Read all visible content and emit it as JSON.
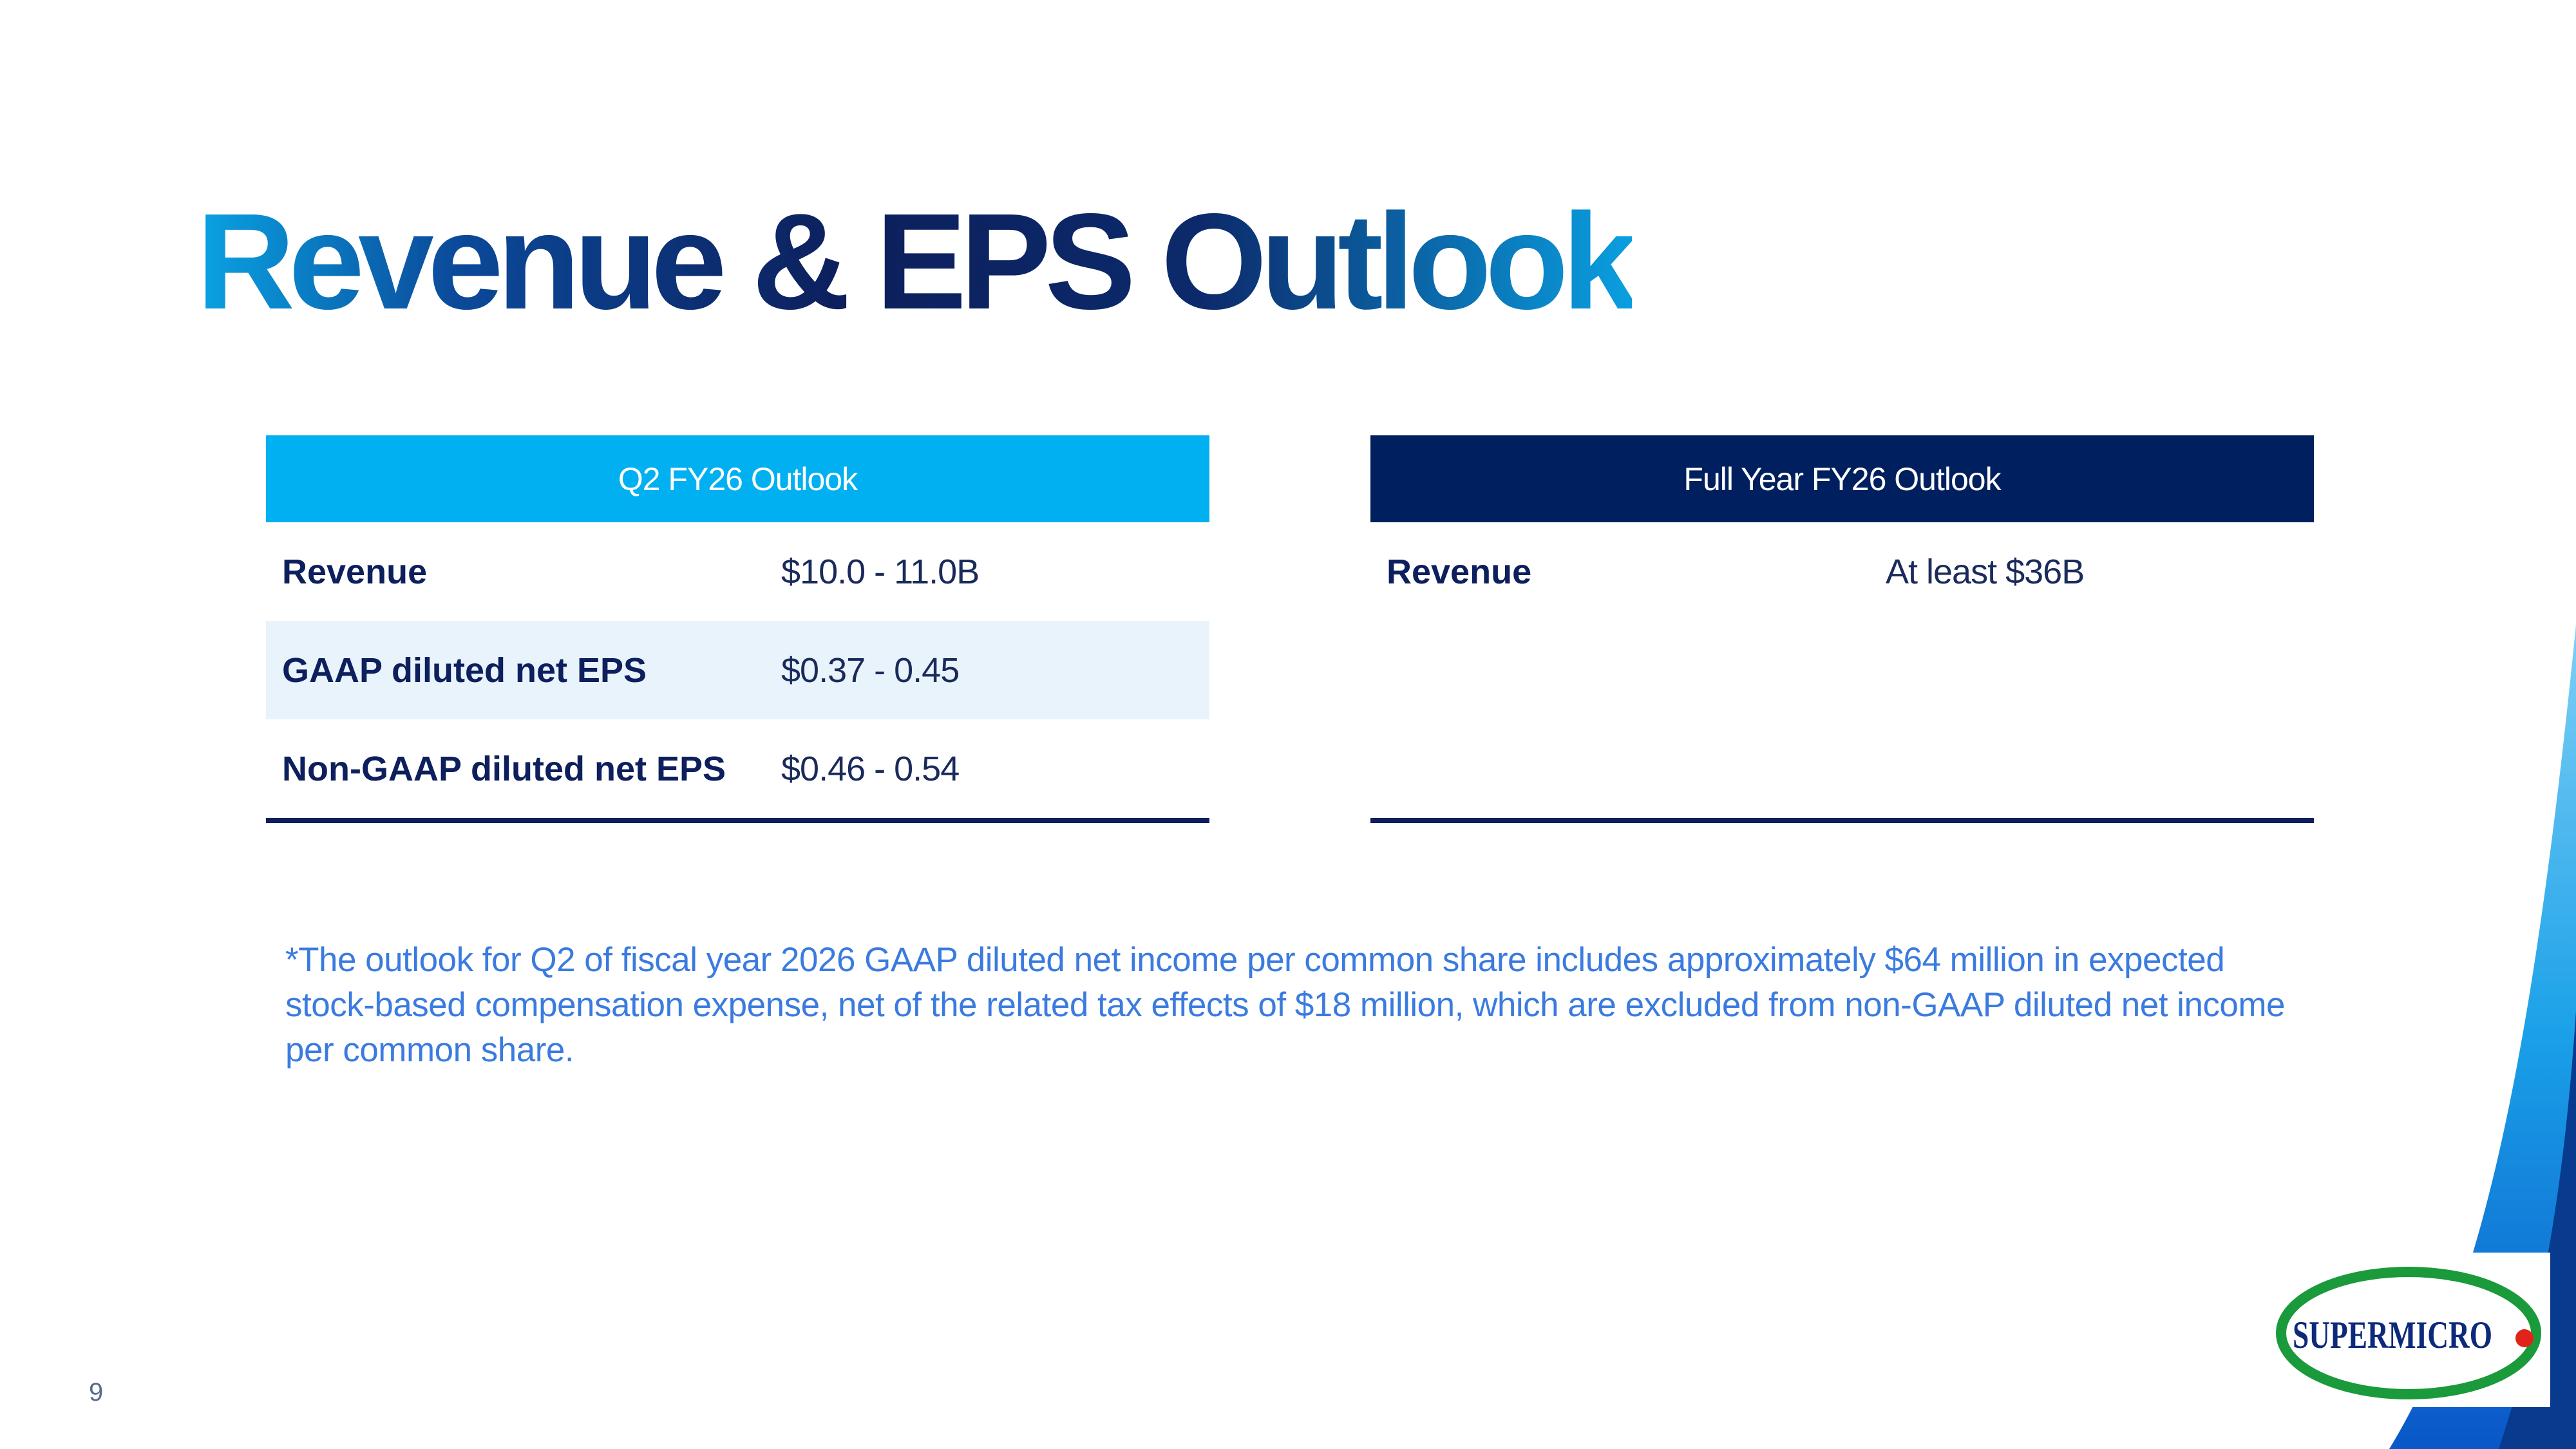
{
  "slide": {
    "title": "Revenue & EPS Outlook",
    "page_number": "9"
  },
  "q2_table": {
    "header": "Q2 FY26 Outlook",
    "rows": [
      {
        "label": "Revenue",
        "value": "$10.0 - 11.0B"
      },
      {
        "label": "GAAP diluted net EPS",
        "value": "$0.37 - 0.45"
      },
      {
        "label": "Non-GAAP diluted net EPS",
        "value": "$0.46 - 0.54"
      }
    ]
  },
  "fy_table": {
    "header": "Full Year FY26 Outlook",
    "rows": [
      {
        "label": "Revenue",
        "value": "At least $36B"
      }
    ]
  },
  "footnote": "*The outlook for Q2 of fiscal year 2026 GAAP diluted net income per common share includes approximately $64 million in expected stock-based compensation expense, net of the related tax effects of $18 million, which are excluded from non-GAAP diluted net income per common share.",
  "logo": {
    "text": "SUPERMICRO"
  },
  "colors": {
    "q2_header": "#00b0f0",
    "fy_header": "#001f5f",
    "row_alt": "#e8f3fb",
    "footnote": "#3b7be0",
    "logo_green": "#1a9a3a",
    "logo_red": "#e2231a"
  }
}
